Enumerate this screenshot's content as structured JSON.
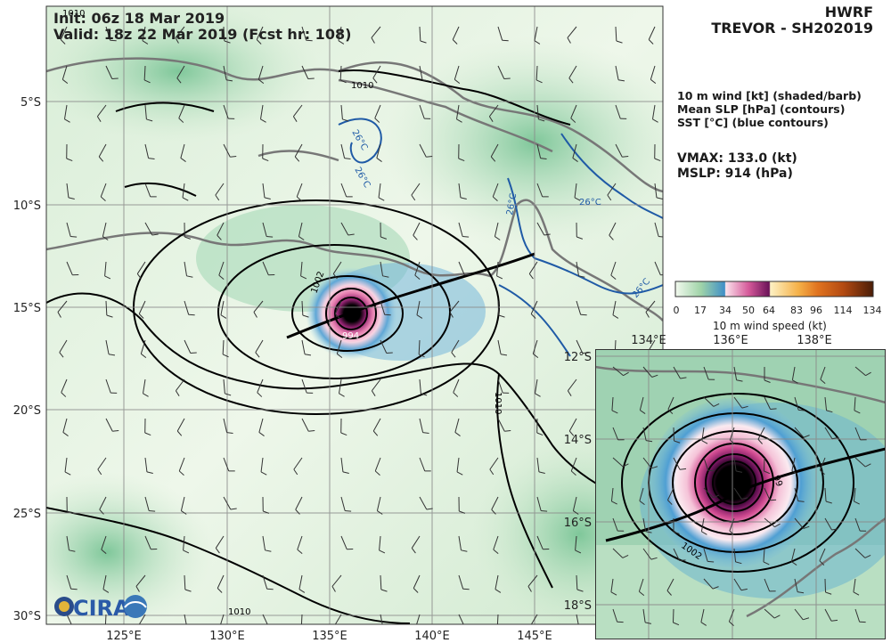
{
  "header": {
    "init": "Init: 06z 18 Mar 2019",
    "valid": "Valid: 18z 22 Mar 2019 (Fcst hr: 108)",
    "model": "HWRF",
    "storm": "TREVOR - SH202019"
  },
  "legend": {
    "lines": [
      "10 m wind [kt] (shaded/barb)",
      "Mean SLP [hPa] (contours)",
      "SST [°C] (blue contours)"
    ],
    "vmax": "VMAX: 133.0 (kt)",
    "mslp": "MSLP:  914 (hPa)"
  },
  "colorbar": {
    "ticks": [
      "0",
      "17",
      "34",
      "50",
      "64",
      "83",
      "96",
      "114",
      "134"
    ],
    "title": "10 m wind speed (kt)"
  },
  "main_map": {
    "lon_labels": [
      "125°E",
      "130°E",
      "135°E",
      "140°E",
      "145°E"
    ],
    "lat_labels": [
      "5°S",
      "10°S",
      "15°S",
      "20°S",
      "25°S",
      "30°S"
    ],
    "contour_labels": [
      "1010",
      "1010",
      "1010",
      "1010",
      "1002",
      "994"
    ],
    "sst_labels": [
      "26°C",
      "26°C",
      "26°C",
      "26°C",
      "26°C"
    ]
  },
  "inset_map": {
    "lon_labels": [
      "134°E",
      "136°E",
      "138°E"
    ],
    "lat_labels": [
      "12°S",
      "14°S",
      "16°S",
      "18°S"
    ],
    "contour_labels": [
      "1002",
      "99"
    ]
  },
  "logo": {
    "text": "CIRA"
  },
  "colors": {
    "land_outline": "#777777",
    "sst_contour": "#1f5aa6",
    "slp_contour": "#000000",
    "grid": "#8a8a8a"
  }
}
